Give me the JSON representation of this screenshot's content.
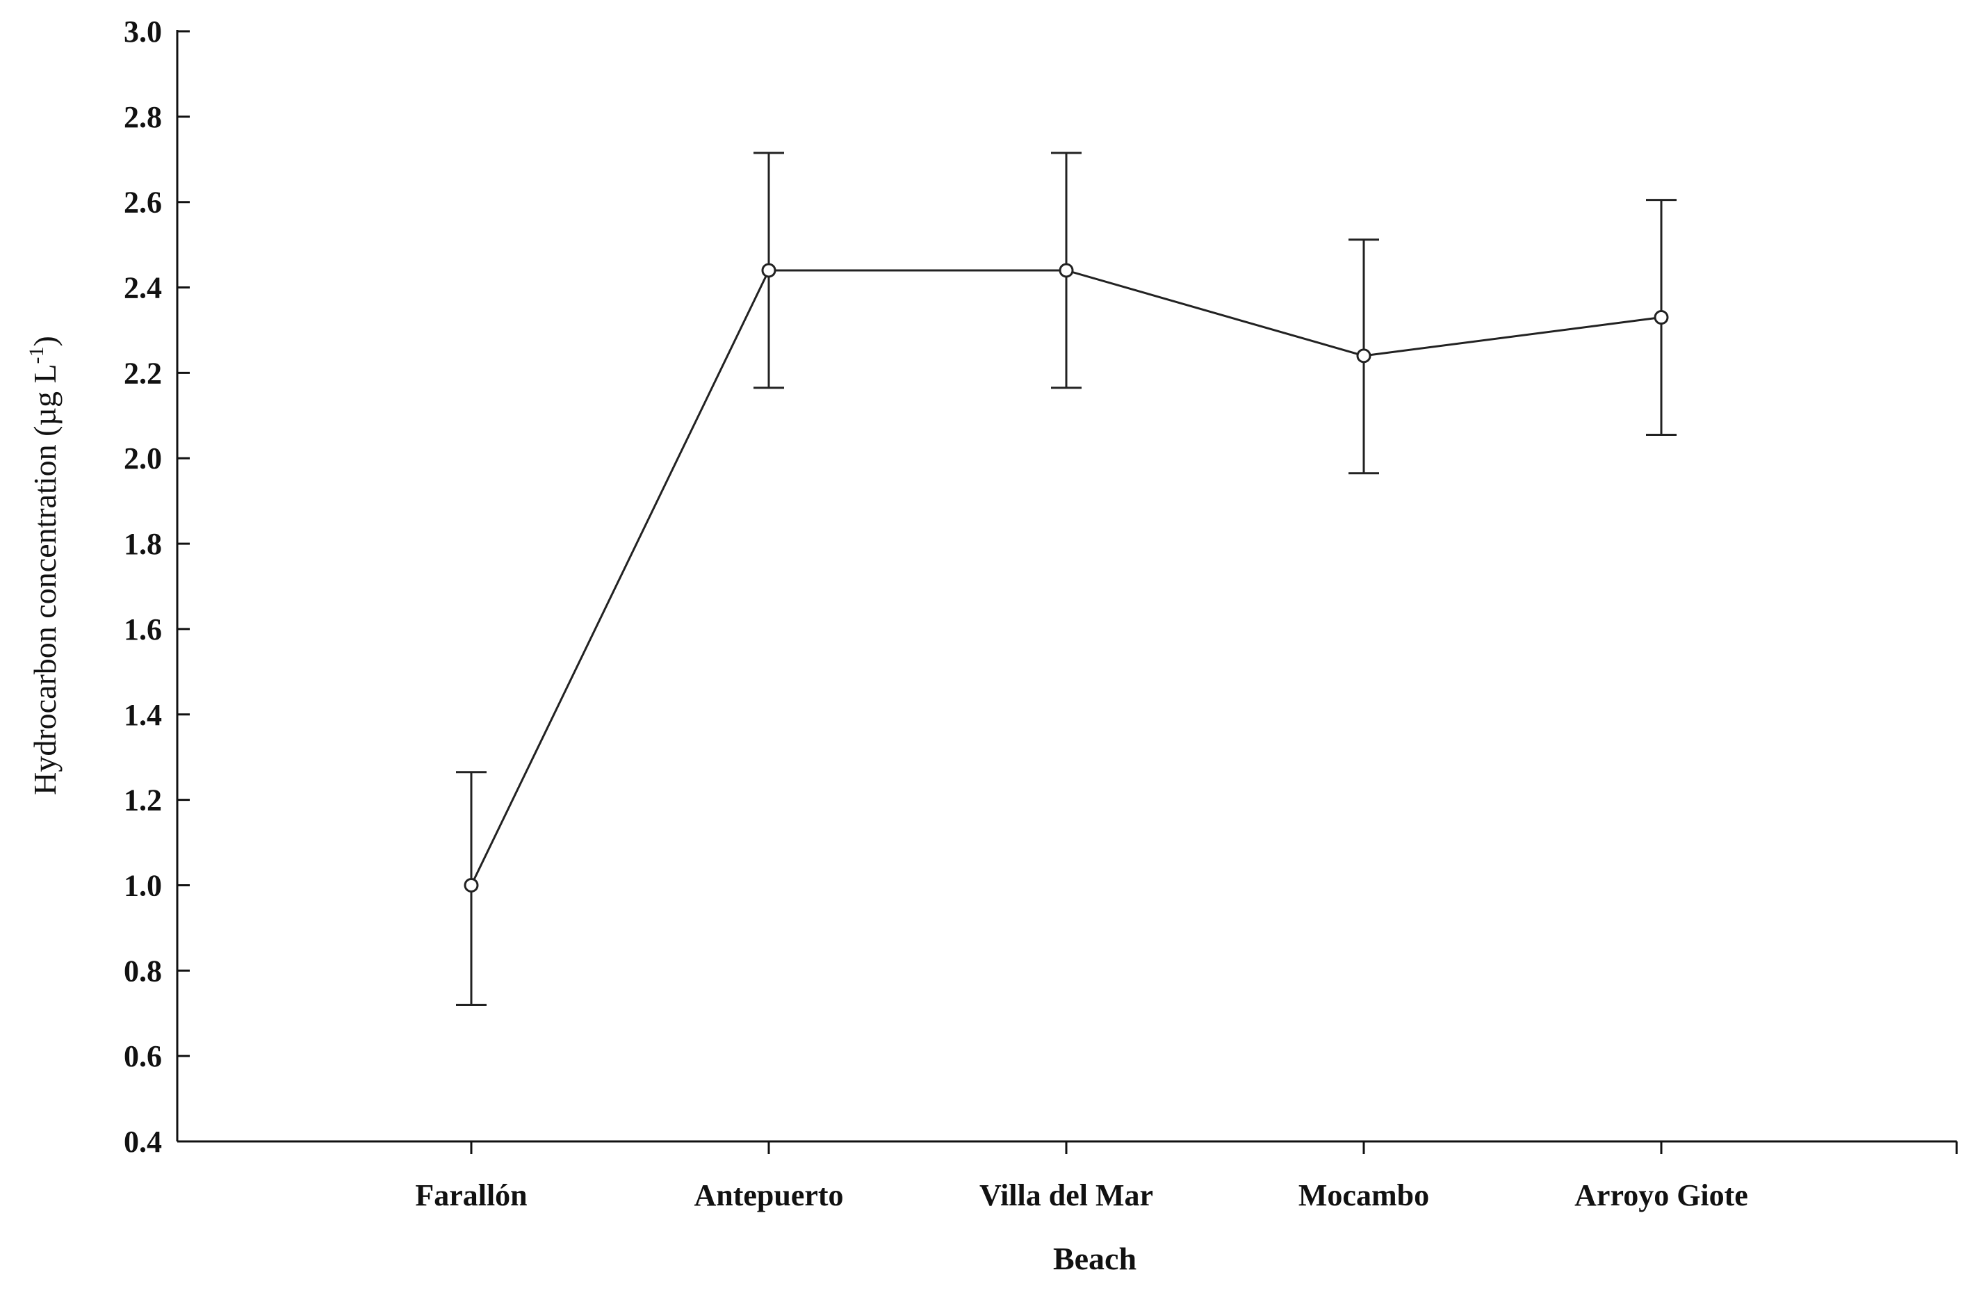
{
  "chart_data": {
    "type": "line",
    "title": "",
    "xlabel": "Beach",
    "ylabel_main": "Hydrocarbon concentration  (µg L",
    "ylabel_sup": "-1",
    "ylabel_close": ")",
    "categories": [
      "Farallón",
      "Antepuerto",
      "Villa del Mar",
      "Mocambo",
      "Arroyo Giote"
    ],
    "series": [
      {
        "values": [
          1.0,
          2.44,
          2.44,
          2.24,
          2.33
        ],
        "error_low": [
          0.72,
          2.165,
          2.165,
          1.965,
          2.055
        ],
        "error_high": [
          1.265,
          2.715,
          2.715,
          2.512,
          2.605
        ]
      }
    ],
    "ylim": [
      0.4,
      3.0
    ],
    "yticks": [
      "0.4",
      "0.6",
      "0.8",
      "1.0",
      "1.2",
      "1.4",
      "1.6",
      "1.8",
      "2.0",
      "2.2",
      "2.4",
      "2.6",
      "2.8",
      "3.0"
    ],
    "grid": false,
    "legend": "none",
    "colors": {
      "line": "#222222",
      "axis": "#111111",
      "marker_fill": "#ffffff"
    }
  }
}
